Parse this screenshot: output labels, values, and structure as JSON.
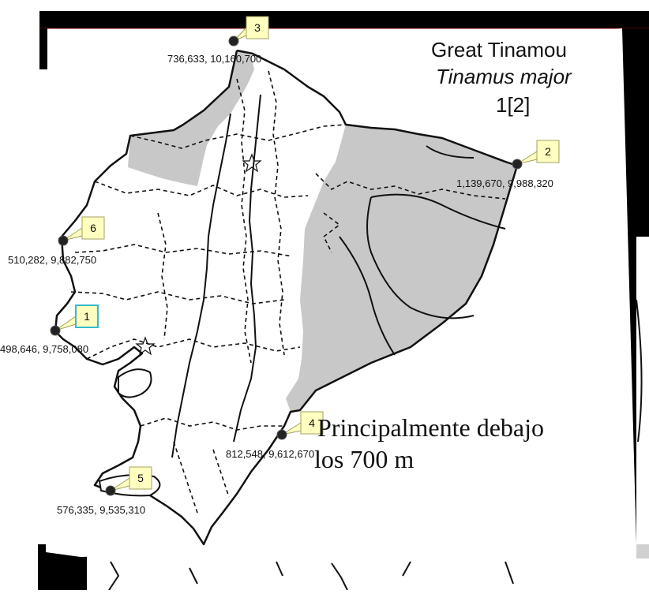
{
  "title": {
    "common_name": "Great Tinamou",
    "scientific_name": "Tinamus major",
    "plate_ref": "1[2]"
  },
  "note": {
    "line1": "Principalmente debajo",
    "line2": "los 700 m"
  },
  "markers": [
    {
      "id": "1",
      "coords": "498,646, 9,758,080",
      "highlighted": true
    },
    {
      "id": "2",
      "coords": "1,139,670, 9,988,320",
      "highlighted": false
    },
    {
      "id": "3",
      "coords": "736,633, 10,160,700",
      "highlighted": false
    },
    {
      "id": "4",
      "coords": "812,548, 9,612,670",
      "highlighted": false
    },
    {
      "id": "5",
      "coords": "576,335, 9,535,310",
      "highlighted": false
    },
    {
      "id": "6",
      "coords": "510,282, 9,882,750",
      "highlighted": false
    }
  ],
  "colors": {
    "range_fill": "#c8c8c8",
    "marker_fill": "#ffffc0",
    "marker_border": "#a0a060",
    "highlight_border": "#33bbcc",
    "frame": "#000000"
  }
}
